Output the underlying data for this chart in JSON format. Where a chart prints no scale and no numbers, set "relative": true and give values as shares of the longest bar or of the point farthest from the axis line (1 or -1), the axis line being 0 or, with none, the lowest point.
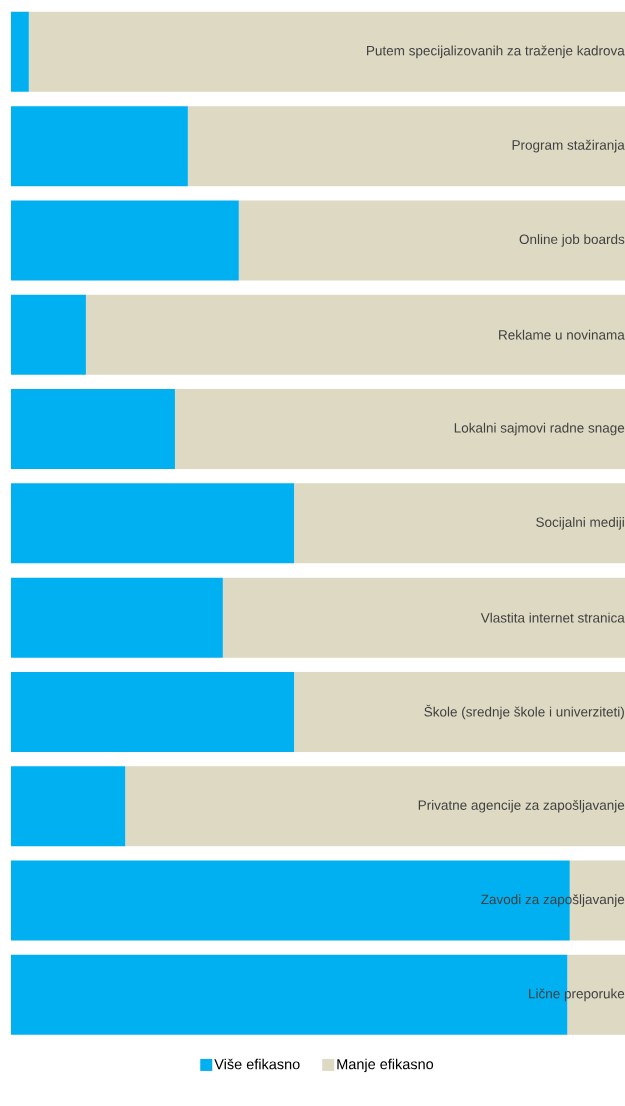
{
  "chart_data": {
    "type": "bar",
    "orientation": "horizontal",
    "stacked": true,
    "relative": true,
    "legend": "bottom",
    "categories": [
      "Putem specijalizovanih za traženje kadrova",
      "Program stažiranja",
      "Online job boards",
      "Reklame u novinama",
      "Lokalni sajmovi radne snage",
      "Socijalni mediji",
      "Vlastita internet stranica",
      "Škole (srednje škole i univerziteti)",
      "Privatne agencije za zapošljavanje",
      "Zavodi za zapošljavanje",
      "Lične preporuke"
    ],
    "series": [
      {
        "name": "Više efikasno",
        "color": "#00b0f0",
        "values": [
          0.029,
          0.288,
          0.371,
          0.122,
          0.267,
          0.461,
          0.345,
          0.461,
          0.186,
          0.91,
          0.906
        ]
      },
      {
        "name": "Manje efikasno",
        "color": "#ddd9c3",
        "values": [
          0.971,
          0.712,
          0.629,
          0.878,
          0.733,
          0.539,
          0.655,
          0.539,
          0.814,
          0.09,
          0.094
        ]
      }
    ]
  }
}
